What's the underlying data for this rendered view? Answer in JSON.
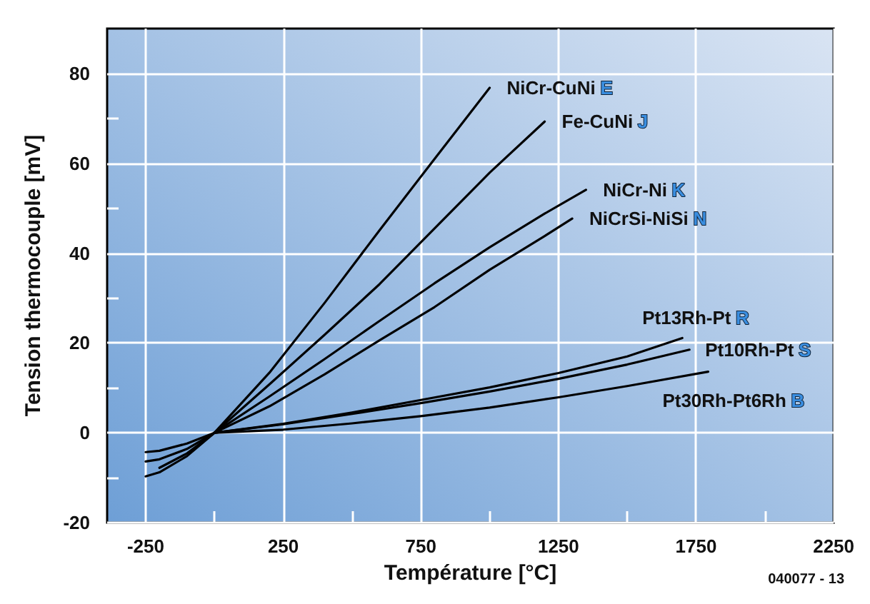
{
  "chart_data": {
    "type": "line",
    "xlabel": "Température [°C]",
    "ylabel": "Tension thermocouple [mV]",
    "xlim": [
      -390,
      2250
    ],
    "xticks": [
      -250,
      {
        "value": 0,
        "label": null
      },
      250,
      {
        "value": 500,
        "label": null
      },
      750,
      {
        "value": 1000,
        "label": null
      },
      1250,
      {
        "value": 1500,
        "label": null
      },
      1750,
      {
        "value": 2000,
        "label": null
      },
      2250
    ],
    "ylim": [
      -20,
      90
    ],
    "yticks": [
      -20,
      {
        "value": -10,
        "label": null
      },
      0,
      {
        "value": 10,
        "label": null
      },
      20,
      {
        "value": 30,
        "label": null
      },
      40,
      {
        "value": 50,
        "label": null
      },
      60,
      {
        "value": 70,
        "label": null
      },
      80
    ],
    "grid": true,
    "legend": false,
    "marker": "none",
    "line_style": "solid",
    "annotations": [
      "040077 - 13"
    ],
    "series": [
      {
        "name": "NiCr-CuNi E",
        "color": "#000000",
        "x": [
          -250,
          -200,
          -100,
          0,
          200,
          400,
          600,
          800,
          1000
        ],
        "values": [
          -9.7,
          -8.8,
          -5.2,
          0,
          13.4,
          28.9,
          45.1,
          61.0,
          76.8
        ]
      },
      {
        "name": "Fe-CuNi J",
        "color": "#000000",
        "x": [
          -200,
          -100,
          0,
          200,
          400,
          600,
          800,
          1000,
          1200
        ],
        "values": [
          -7.8,
          -4.6,
          0,
          10.8,
          21.8,
          33.1,
          45.5,
          57.9,
          69.3
        ]
      },
      {
        "name": "NiCr-Ni K",
        "color": "#000000",
        "x": [
          -250,
          -200,
          -100,
          0,
          200,
          400,
          600,
          800,
          1000,
          1200,
          1350
        ],
        "values": [
          -6.4,
          -5.9,
          -3.6,
          0,
          8.1,
          16.4,
          24.9,
          33.3,
          41.3,
          48.8,
          54.1
        ]
      },
      {
        "name": "NiCrSi-NiSi N",
        "color": "#000000",
        "x": [
          -250,
          -200,
          -100,
          0,
          200,
          400,
          600,
          800,
          1000,
          1200,
          1300
        ],
        "values": [
          -4.3,
          -4.0,
          -2.4,
          0,
          5.9,
          13.0,
          20.6,
          28.0,
          36.3,
          43.8,
          47.7
        ]
      },
      {
        "name": "Pt13Rh-Pt R",
        "color": "#000000",
        "x": [
          0,
          250,
          500,
          750,
          1000,
          1250,
          1500,
          1700
        ],
        "values": [
          0,
          2.0,
          4.5,
          7.3,
          10.1,
          13.3,
          17.0,
          21.1
        ]
      },
      {
        "name": "Pt10Rh-Pt S",
        "color": "#000000",
        "x": [
          0,
          250,
          500,
          750,
          1000,
          1250,
          1500,
          1726
        ],
        "values": [
          0,
          1.9,
          4.2,
          6.6,
          9.2,
          12.0,
          15.2,
          18.5
        ]
      },
      {
        "name": "Pt30Rh-Pt6Rh B",
        "color": "#000000",
        "x": [
          0,
          250,
          500,
          750,
          1000,
          1250,
          1500,
          1794
        ],
        "values": [
          0,
          0.7,
          2.1,
          3.7,
          5.6,
          7.9,
          10.4,
          13.6
        ]
      }
    ]
  }
}
